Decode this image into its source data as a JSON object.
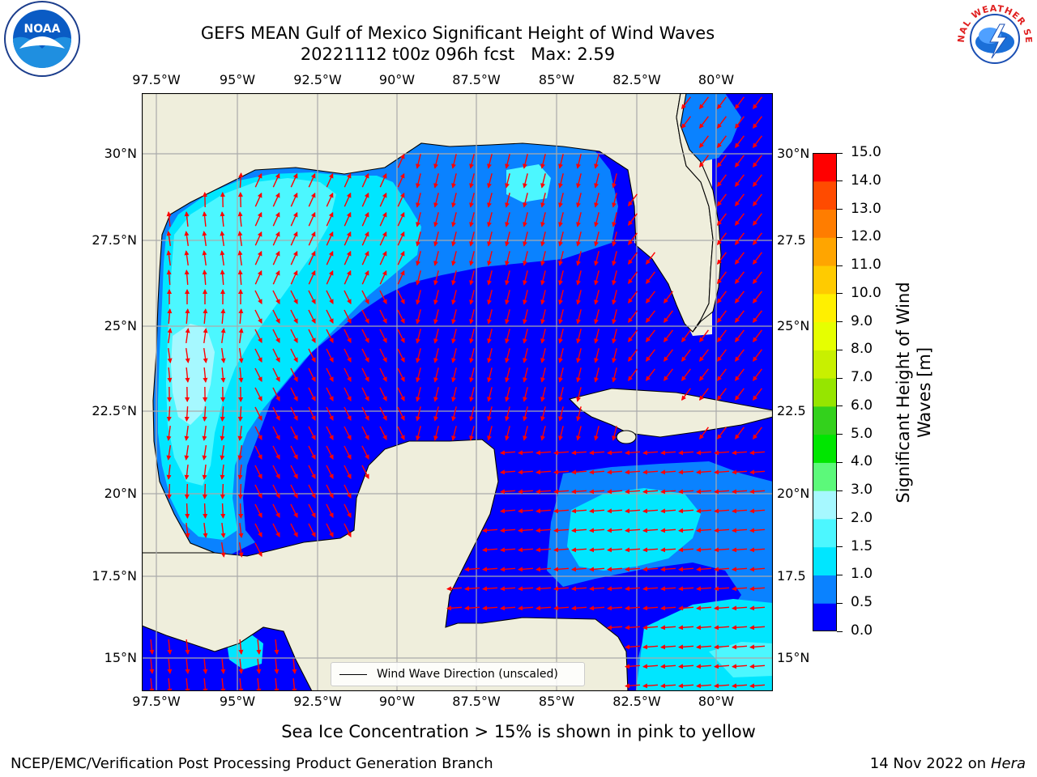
{
  "title_line1": "GEFS MEAN Gulf of Mexico Significant Height of Wind Waves",
  "title_line2": "20221112 t00z 096h fcst   Max: 2.59",
  "lon_ticks": [
    "97.5°W",
    "95°W",
    "92.5°W",
    "90°W",
    "87.5°W",
    "85°W",
    "82.5°W",
    "80°W"
  ],
  "lat_ticks_left": [
    "30°N",
    "27.5°N",
    "25°N",
    "22.5°N",
    "20°N",
    "17.5°N",
    "15°N"
  ],
  "lat_ticks_right": [
    "30°N",
    "27.5",
    "25°N",
    "22.5",
    "20°N",
    "17.5",
    "15°N"
  ],
  "legend_label": "Wind Wave Direction (unscaled)",
  "colorbar": {
    "title_line1": "Significant Height of Wind",
    "title_line2": "Waves [m]",
    "labels": [
      "0.0",
      "0.5",
      "1.0",
      "1.5",
      "2.0",
      "3.0",
      "4.0",
      "5.0",
      "6.0",
      "7.0",
      "8.0",
      "9.0",
      "10.0",
      "11.0",
      "12.0",
      "13.0",
      "14.0",
      "15.0"
    ],
    "colors": [
      "#0000ff",
      "#0a82ff",
      "#00e6ff",
      "#4cf7ff",
      "#a6f8ff",
      "#5cf97a",
      "#00e600",
      "#33d11c",
      "#96e500",
      "#c8f000",
      "#e6ff00",
      "#fff000",
      "#ffcb00",
      "#ffa500",
      "#ff7d00",
      "#ff4b00",
      "#ff0000"
    ]
  },
  "subtitle": "Sea Ice Concentration > 15% is shown in pink to yellow",
  "footer_left": "NCEP/EMC/Verification Post Processing Product Generation Branch",
  "footer_right_date": "14 Nov 2022 on",
  "footer_right_host": "Hera",
  "logo_left": "NOAA",
  "logo_right": "NATIONAL WEATHER SERVICE",
  "colors": {
    "land": "#efeedc",
    "arrow": "#ff0000",
    "grid": "#aaaaaa"
  }
}
